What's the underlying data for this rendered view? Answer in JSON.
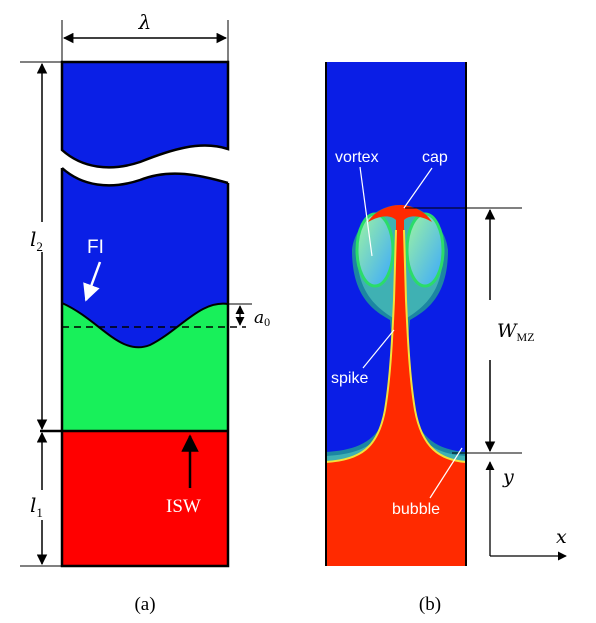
{
  "panel_a": {
    "caption": "(a)",
    "labels": {
      "lambda": "λ",
      "l2_main": "l",
      "l2_sub": "2",
      "l1_main": "l",
      "l1_sub": "1",
      "fi": "FI",
      "a0_main": "a",
      "a0_sub": "0",
      "isw": "ISW"
    },
    "colors": {
      "heavy_fluid": "#0a1fe6",
      "light_fluid": "#18f05a",
      "shocked_fluid": "#ff0000"
    }
  },
  "panel_b": {
    "caption": "(b)",
    "labels": {
      "vortex": "vortex",
      "cap": "cap",
      "spike": "spike",
      "bubble": "bubble",
      "wmz_main": "W",
      "wmz_sub": "MZ",
      "y_axis": "y",
      "x_axis": "x"
    },
    "colors": {
      "background": "#0a1ee6",
      "interface": "#ff2a00",
      "mixing_green": "#2bdc6a"
    }
  }
}
